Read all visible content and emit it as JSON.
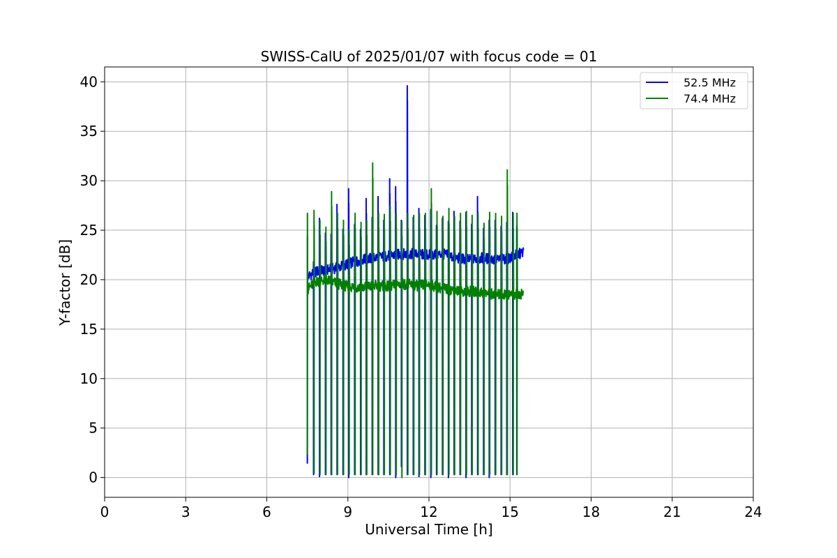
{
  "chart_data": {
    "type": "line",
    "title": "SWISS-CalU of 2025/01/07 with focus code = 01",
    "xlabel": "Universal Time [h]",
    "ylabel": "Y-factor [dB]",
    "xlim": [
      0,
      24
    ],
    "ylim": [
      -2,
      41.5
    ],
    "xticks": [
      0,
      3,
      6,
      9,
      12,
      15,
      18,
      21,
      24
    ],
    "yticks": [
      0,
      5,
      10,
      15,
      20,
      25,
      30,
      35,
      40
    ],
    "grid": true,
    "legend_position": "top-right",
    "series": [
      {
        "name": "52.5 MHz",
        "color": "#0000ff",
        "baseline": [
          [
            7.5,
            20.3
          ],
          [
            7.8,
            20.8
          ],
          [
            8.2,
            21.0
          ],
          [
            8.6,
            21.2
          ],
          [
            9.0,
            21.6
          ],
          [
            9.5,
            22.0
          ],
          [
            10.0,
            22.2
          ],
          [
            10.5,
            22.4
          ],
          [
            11.0,
            22.6
          ],
          [
            11.5,
            22.6
          ],
          [
            12.0,
            22.5
          ],
          [
            12.5,
            22.6
          ],
          [
            13.0,
            22.2
          ],
          [
            13.5,
            22.0
          ],
          [
            14.0,
            22.2
          ],
          [
            14.5,
            22.0
          ],
          [
            15.0,
            22.2
          ],
          [
            15.5,
            22.8
          ]
        ],
        "calibration_times": [
          7.5,
          7.73,
          7.95,
          8.17,
          8.38,
          8.6,
          8.82,
          9.03,
          9.25,
          9.47,
          9.68,
          9.9,
          10.12,
          10.33,
          10.55,
          10.77,
          10.98,
          11.2,
          11.42,
          11.63,
          11.85,
          12.07,
          12.28,
          12.5,
          12.72,
          12.93,
          13.15,
          13.37,
          13.58,
          13.8,
          14.02,
          14.23,
          14.45,
          14.67,
          14.88,
          15.1,
          15.25
        ],
        "peaks": [
          24.4,
          21.8,
          26.2,
          24.7,
          24.6,
          27.6,
          25.1,
          29.2,
          25.6,
          25.1,
          28.2,
          26.3,
          28.4,
          26.0,
          30.2,
          29.4,
          26.0,
          39.6,
          26.3,
          27.2,
          26.5,
          27.1,
          25.5,
          26.2,
          25.9,
          26.9,
          25.9,
          26.8,
          25.6,
          28.4,
          25.2,
          26.0,
          26.0,
          25.4,
          25.8,
          26.8,
          25.4
        ],
        "dips": [
          1.4,
          0.3,
          0.1,
          0.3,
          0.3,
          0.3,
          0.3,
          0.0,
          0.3,
          0.3,
          0.3,
          0.3,
          0.3,
          0.3,
          0.3,
          0.0,
          1.1,
          0.3,
          0.3,
          0.1,
          0.3,
          0.0,
          0.3,
          0.3,
          0.0,
          0.3,
          0.3,
          0.0,
          0.3,
          0.3,
          0.3,
          0.0,
          0.3,
          0.3,
          0.3,
          0.3,
          0.3
        ]
      },
      {
        "name": "74.4 MHz",
        "color": "#008000",
        "baseline": [
          [
            7.5,
            19.0
          ],
          [
            7.8,
            19.8
          ],
          [
            8.2,
            20.0
          ],
          [
            8.6,
            19.6
          ],
          [
            9.0,
            19.3
          ],
          [
            9.5,
            19.2
          ],
          [
            10.0,
            19.4
          ],
          [
            10.5,
            19.3
          ],
          [
            11.0,
            19.6
          ],
          [
            11.5,
            19.4
          ],
          [
            12.0,
            19.5
          ],
          [
            12.5,
            19.1
          ],
          [
            13.0,
            18.9
          ],
          [
            13.5,
            18.8
          ],
          [
            14.0,
            18.7
          ],
          [
            14.5,
            18.5
          ],
          [
            15.0,
            18.5
          ],
          [
            15.5,
            18.6
          ]
        ],
        "calibration_times": [
          7.52,
          7.75,
          7.97,
          8.19,
          8.4,
          8.62,
          8.84,
          9.05,
          9.27,
          9.49,
          9.7,
          9.92,
          10.14,
          10.35,
          10.57,
          10.79,
          11.0,
          11.22,
          11.44,
          11.65,
          11.87,
          12.09,
          12.3,
          12.52,
          12.74,
          12.95,
          13.17,
          13.39,
          13.6,
          13.82,
          14.04,
          14.25,
          14.47,
          14.69,
          14.9,
          15.12,
          15.26
        ],
        "peaks": [
          26.7,
          27.0,
          26.0,
          25.3,
          28.9,
          26.7,
          26.0,
          25.0,
          26.7,
          25.8,
          26.0,
          31.8,
          26.7,
          26.6,
          27.4,
          26.7,
          25.9,
          26.7,
          26.5,
          26.7,
          26.7,
          29.2,
          26.9,
          26.4,
          27.2,
          26.4,
          26.7,
          26.9,
          26.5,
          26.7,
          25.7,
          26.8,
          26.7,
          26.4,
          31.1,
          26.7,
          26.7
        ],
        "dips": [
          2.3,
          0.4,
          0.3,
          0.3,
          0.3,
          0.3,
          0.3,
          0.3,
          0.3,
          0.3,
          0.3,
          0.3,
          0.3,
          0.3,
          0.3,
          0.3,
          0.0,
          0.3,
          0.3,
          0.3,
          0.3,
          0.3,
          0.3,
          0.3,
          0.3,
          0.3,
          0.3,
          0.3,
          0.3,
          0.3,
          0.3,
          0.3,
          0.3,
          0.3,
          0.3,
          0.3,
          0.3
        ]
      }
    ]
  }
}
